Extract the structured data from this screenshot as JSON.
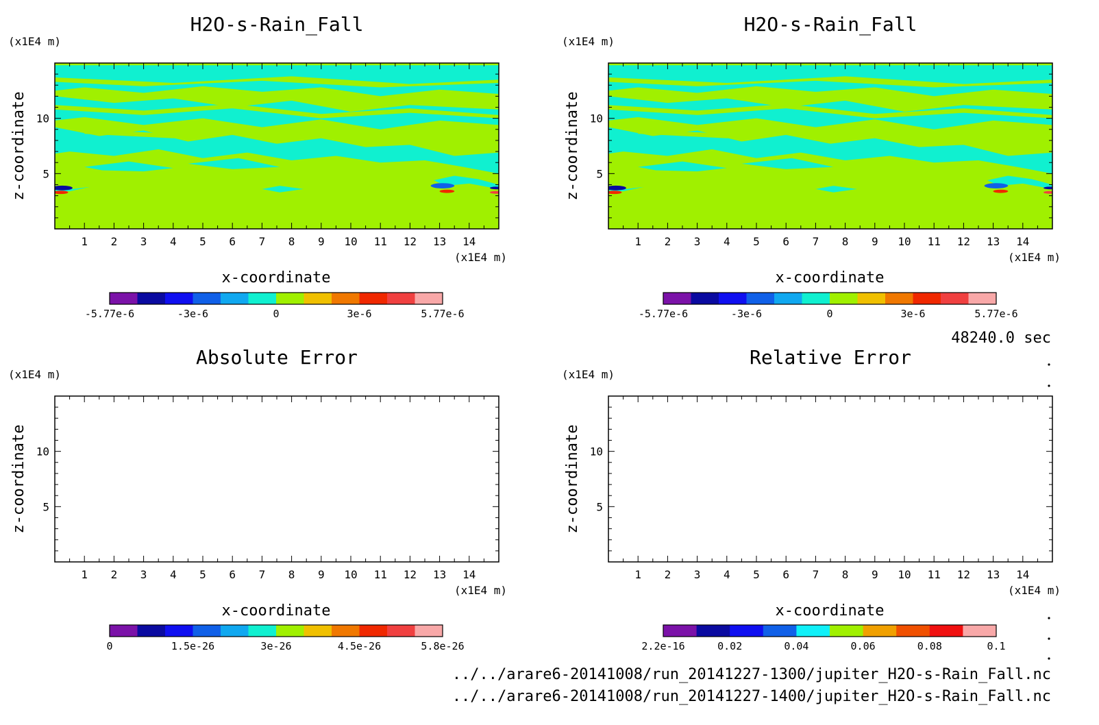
{
  "footer": {
    "time_label": "48240.0 sec",
    "file_1": "../../arare6-20141008/run_20141227-1300/jupiter_H2O-s-Rain_Fall.nc",
    "file_2": "../../arare6-20141008/run_20141227-1400/jupiter_H2O-s-Rain_Fall.nc"
  },
  "chart_data": [
    {
      "type": "heatmap",
      "title": "H2O-s-Rain_Fall",
      "xlabel": "x-coordinate",
      "ylabel": "z-coordinate",
      "x_unit": "(x1E4 m)",
      "y_unit": "(x1E4 m)",
      "xlim": [
        0,
        15
      ],
      "ylim": [
        0,
        15
      ],
      "xticks": [
        "1",
        "2",
        "3",
        "4",
        "5",
        "6",
        "7",
        "8",
        "9",
        "10",
        "11",
        "12",
        "13",
        "14"
      ],
      "yticks": [
        "5",
        "10"
      ],
      "colorbar": {
        "colors": [
          "#7b12a8",
          "#0a0aa0",
          "#0f0ff0",
          "#1060e8",
          "#10a8f0",
          "#10f0d0",
          "#a0f000",
          "#f0c000",
          "#f07800",
          "#f02800",
          "#f04040",
          "#f8a8a8"
        ],
        "tick_labels": [
          "-5.77e-6",
          "-3e-6",
          "0",
          "3e-6",
          "5.77e-6"
        ]
      },
      "field": {
        "background": "#a0f000",
        "cloud_color": "#10f0d0",
        "band_color": "#a0f000",
        "features": [
          "dominant value near 0 (yellow-green) below z=5",
          "slightly negative (cyan) layers between z=5 and z=14",
          "strong negative/positive cores near x=13, z=3.5 and at x=0, z=3.5"
        ]
      }
    },
    {
      "type": "heatmap",
      "title": "H2O-s-Rain_Fall",
      "xlabel": "x-coordinate",
      "ylabel": "z-coordinate",
      "x_unit": "(x1E4 m)",
      "y_unit": "(x1E4 m)",
      "xlim": [
        0,
        15
      ],
      "ylim": [
        0,
        15
      ],
      "xticks": [
        "1",
        "2",
        "3",
        "4",
        "5",
        "6",
        "7",
        "8",
        "9",
        "10",
        "11",
        "12",
        "13",
        "14"
      ],
      "yticks": [
        "5",
        "10"
      ],
      "colorbar": {
        "colors": [
          "#7b12a8",
          "#0a0aa0",
          "#0f0ff0",
          "#1060e8",
          "#10a8f0",
          "#10f0d0",
          "#a0f000",
          "#f0c000",
          "#f07800",
          "#f02800",
          "#f04040",
          "#f8a8a8"
        ],
        "tick_labels": [
          "-5.77e-6",
          "-3e-6",
          "0",
          "3e-6",
          "5.77e-6"
        ]
      },
      "field": {
        "background": "#a0f000",
        "cloud_color": "#10f0d0",
        "band_color": "#a0f000",
        "features": [
          "identical to upper-left panel"
        ]
      }
    },
    {
      "type": "heatmap",
      "title": "Absolute Error",
      "xlabel": "x-coordinate",
      "ylabel": "z-coordinate",
      "x_unit": "(x1E4 m)",
      "y_unit": "(x1E4 m)",
      "xlim": [
        0,
        15
      ],
      "ylim": [
        0,
        15
      ],
      "xticks": [
        "1",
        "2",
        "3",
        "4",
        "5",
        "6",
        "7",
        "8",
        "9",
        "10",
        "11",
        "12",
        "13",
        "14"
      ],
      "yticks": [
        "5",
        "10"
      ],
      "colorbar": {
        "colors": [
          "#7b12a8",
          "#0a0aa0",
          "#0f0ff0",
          "#1060e8",
          "#10a8f0",
          "#10f0d0",
          "#a0f000",
          "#f0c000",
          "#f07800",
          "#f02800",
          "#f04040",
          "#f8a8a8"
        ],
        "tick_labels": [
          "0",
          "1.5e-26",
          "3e-26",
          "4.5e-26",
          "5.8e-26"
        ]
      },
      "field": {
        "background": "#ffffff",
        "features": [
          "empty"
        ]
      }
    },
    {
      "type": "heatmap",
      "title": "Relative Error",
      "xlabel": "x-coordinate",
      "ylabel": "z-coordinate",
      "x_unit": "(x1E4 m)",
      "y_unit": "(x1E4 m)",
      "xlim": [
        0,
        15
      ],
      "ylim": [
        0,
        15
      ],
      "xticks": [
        "1",
        "2",
        "3",
        "4",
        "5",
        "6",
        "7",
        "8",
        "9",
        "10",
        "11",
        "12",
        "13",
        "14"
      ],
      "yticks": [
        "5",
        "10"
      ],
      "colorbar": {
        "colors": [
          "#7b12a8",
          "#0a0aa0",
          "#0f0ff0",
          "#1060e8",
          "#10f0f8",
          "#a0f000",
          "#f0a000",
          "#f05000",
          "#f01010",
          "#f8a8a8"
        ],
        "tick_labels": [
          "2.2e-16",
          "0.02",
          "0.04",
          "0.06",
          "0.08",
          "0.1"
        ]
      },
      "field": {
        "background": "#ffffff",
        "features": [
          "empty"
        ]
      }
    }
  ]
}
